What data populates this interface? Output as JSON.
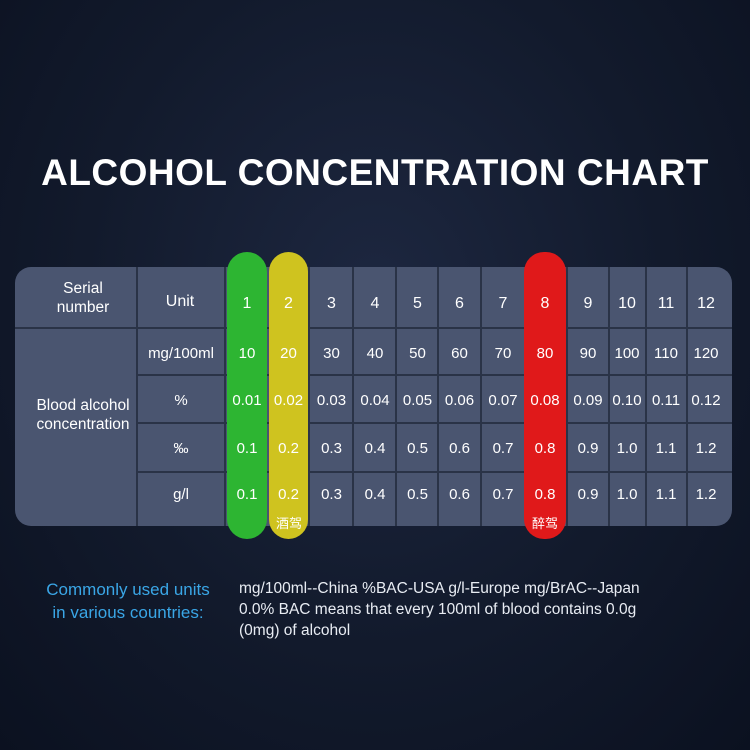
{
  "title": "ALCOHOL CONCENTRATION CHART",
  "table": {
    "corner_label_line1": "Serial",
    "corner_label_line2": "number",
    "unit_header": "Unit",
    "row_group_label_line1": "Blood alcohol",
    "row_group_label_line2": "concentration",
    "serials": [
      "1",
      "2",
      "3",
      "4",
      "5",
      "6",
      "7",
      "8",
      "9",
      "10",
      "11",
      "12"
    ],
    "rows": [
      {
        "unit": "mg/100ml",
        "values": [
          "10",
          "20",
          "30",
          "40",
          "50",
          "60",
          "70",
          "80",
          "90",
          "100",
          "110",
          "120"
        ]
      },
      {
        "unit": "%",
        "values": [
          "0.01",
          "0.02",
          "0.03",
          "0.04",
          "0.05",
          "0.06",
          "0.07",
          "0.08",
          "0.09",
          "0.10",
          "0.11",
          "0.12"
        ]
      },
      {
        "unit": "‰",
        "values": [
          "0.1",
          "0.2",
          "0.3",
          "0.4",
          "0.5",
          "0.6",
          "0.7",
          "0.8",
          "0.9",
          "1.0",
          "1.1",
          "1.2"
        ]
      },
      {
        "unit": "g/l",
        "values": [
          "0.1",
          "0.2",
          "0.3",
          "0.4",
          "0.5",
          "0.6",
          "0.7",
          "0.8",
          "0.9",
          "1.0",
          "1.1",
          "1.2"
        ]
      }
    ],
    "drink_driving_tag": "酒驾",
    "drunk_driving_tag": "醉驾",
    "colors": {
      "green": "#2db532",
      "yellow": "#cfc31f",
      "red": "#e0191a",
      "table_bg": "#4a5570"
    }
  },
  "notes": {
    "label_line1": "Commonly used units",
    "label_line2": "in various countries:",
    "line1": "mg/100ml--China %BAC-USA g/l-Europe mg/BrAC--Japan",
    "line2": "0.0% BAC means that every 100ml of blood contains 0.0g",
    "line3": "(0mg) of alcohol"
  }
}
